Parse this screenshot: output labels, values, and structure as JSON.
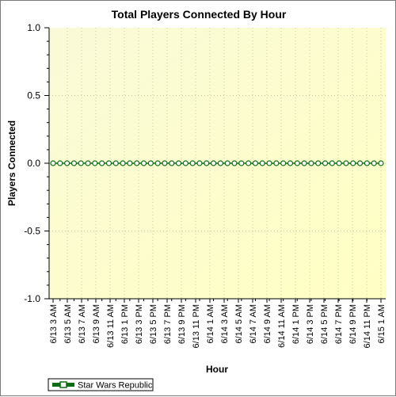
{
  "chart_data": {
    "type": "line",
    "title": "Total Players Connected By Hour",
    "xlabel": "Hour",
    "ylabel": "Players Connected",
    "ylim": [
      -1.0,
      1.0
    ],
    "yticks": [
      "1.0",
      "0.5",
      "0.0",
      "-0.5",
      "-1.0"
    ],
    "grid": true,
    "legend_position": "bottom-left",
    "x_tick_labels": [
      "6/13 3 AM",
      "6/13 5 AM",
      "6/13 7 AM",
      "6/13 9 AM",
      "6/13 11 AM",
      "6/13 1 PM",
      "6/13 3 PM",
      "6/13 5 PM",
      "6/13 7 PM",
      "6/13 9 PM",
      "6/13 11 PM",
      "6/14 1 AM",
      "6/14 3 AM",
      "6/14 5 AM",
      "6/14 7 AM",
      "6/14 9 AM",
      "6/14 11 AM",
      "6/14 1 PM",
      "6/14 3 PM",
      "6/14 5 PM",
      "6/14 7 PM",
      "6/14 9 PM",
      "6/14 11 PM",
      "6/15 1 AM"
    ],
    "series": [
      {
        "name": "Star Wars Republic",
        "color": "#0b6e12",
        "values": [
          0,
          0,
          0,
          0,
          0,
          0,
          0,
          0,
          0,
          0,
          0,
          0,
          0,
          0,
          0,
          0,
          0,
          0,
          0,
          0,
          0,
          0,
          0,
          0,
          0,
          0,
          0,
          0,
          0,
          0,
          0,
          0,
          0,
          0,
          0,
          0,
          0,
          0,
          0,
          0,
          0,
          0,
          0,
          0,
          0,
          0,
          0,
          0
        ]
      }
    ],
    "colors": {
      "plot_bg_start": "#fafad8",
      "plot_bg_end": "#ffffc4",
      "grid": "#c8c8a0",
      "marker_fill": "#ffffff"
    }
  }
}
